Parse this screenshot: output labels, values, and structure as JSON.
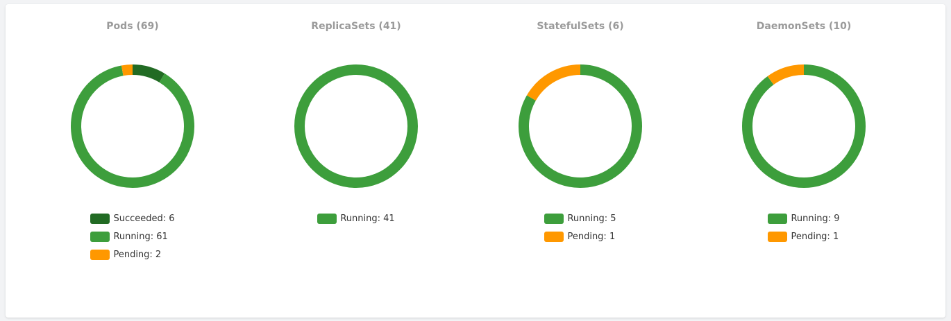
{
  "chart_data": [
    {
      "type": "donut",
      "title": "Pods (69)",
      "categories": [
        "Succeeded: 6",
        "Running: 61",
        "Pending: 2"
      ],
      "values": [
        6,
        61,
        2
      ],
      "colors": [
        "#226b24",
        "#3d9e3c",
        "#ff9800"
      ]
    },
    {
      "type": "donut",
      "title": "ReplicaSets (41)",
      "categories": [
        "Running: 41"
      ],
      "values": [
        41
      ],
      "colors": [
        "#3d9e3c"
      ]
    },
    {
      "type": "donut",
      "title": "StatefulSets (6)",
      "categories": [
        "Running: 5",
        "Pending: 1"
      ],
      "values": [
        5,
        1
      ],
      "colors": [
        "#3d9e3c",
        "#ff9800"
      ]
    },
    {
      "type": "donut",
      "title": "DaemonSets (10)",
      "categories": [
        "Running: 9",
        "Pending: 1"
      ],
      "values": [
        9,
        1
      ],
      "colors": [
        "#3d9e3c",
        "#ff9800"
      ]
    }
  ]
}
